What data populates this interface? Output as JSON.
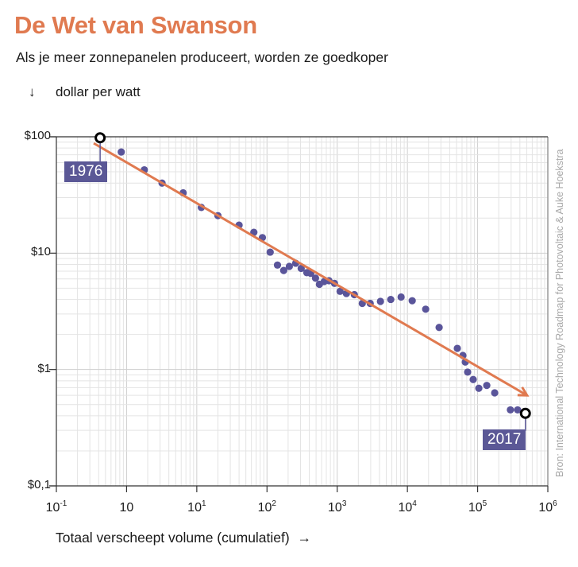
{
  "title": "De Wet van Swanson",
  "subtitle": "Als je meer zonnepanelen produceert, worden ze goedkoper",
  "source": "Bron: International Technology Roadmap for Photovoltaic & Auke Hoekstra",
  "colors": {
    "accent": "#e07a50",
    "points": "#5a559a",
    "label_box": "#5b5896"
  },
  "chart_data": {
    "type": "scatter",
    "title": "De Wet van Swanson",
    "xlabel": "Totaal verscheept volume (cumulatief)",
    "xlabel_arrow": "→",
    "ylabel": "dollar per watt",
    "ylabel_arrow": "↓",
    "xscale": "log",
    "yscale": "log",
    "xlim": [
      0.1,
      1000000
    ],
    "ylim": [
      0.1,
      100
    ],
    "grid": true,
    "y_ticks": [
      {
        "value": 100,
        "label": "$100"
      },
      {
        "value": 10,
        "label": "$10"
      },
      {
        "value": 1,
        "label": "$1"
      },
      {
        "value": 0.1,
        "label": "$0,1"
      }
    ],
    "x_ticks": [
      {
        "value": 0.1,
        "base": "10",
        "exp": "-1"
      },
      {
        "value": 1,
        "base": "10",
        "exp": ""
      },
      {
        "value": 10,
        "base": "10",
        "exp": "1"
      },
      {
        "value": 100,
        "base": "10",
        "exp": "2"
      },
      {
        "value": 1000,
        "base": "10",
        "exp": "3"
      },
      {
        "value": 10000,
        "base": "10",
        "exp": "4"
      },
      {
        "value": 100000,
        "base": "10",
        "exp": "5"
      },
      {
        "value": 1000000,
        "base": "10",
        "exp": "6"
      }
    ],
    "points": [
      [
        0.84,
        74
      ],
      [
        1.79,
        52
      ],
      [
        3.2,
        40
      ],
      [
        6.4,
        33
      ],
      [
        11.6,
        24.7
      ],
      [
        20,
        21
      ],
      [
        40,
        17.4
      ],
      [
        65,
        15.1
      ],
      [
        86,
        13.6
      ],
      [
        111,
        10.2
      ],
      [
        141,
        7.9
      ],
      [
        173,
        7.1
      ],
      [
        208,
        7.7
      ],
      [
        256,
        8.2
      ],
      [
        307,
        7.4
      ],
      [
        369,
        6.8
      ],
      [
        420,
        6.7
      ],
      [
        491,
        6.1
      ],
      [
        558,
        5.4
      ],
      [
        653,
        5.7
      ],
      [
        764,
        5.8
      ],
      [
        916,
        5.5
      ],
      [
        1099,
        4.7
      ],
      [
        1352,
        4.5
      ],
      [
        1754,
        4.4
      ],
      [
        2275,
        3.7
      ],
      [
        2951,
        3.7
      ],
      [
        4130,
        3.85
      ],
      [
        5790,
        4.0
      ],
      [
        8130,
        4.2
      ],
      [
        11700,
        3.9
      ],
      [
        18200,
        3.3
      ],
      [
        28300,
        2.3
      ],
      [
        51400,
        1.52
      ],
      [
        61700,
        1.32
      ],
      [
        66700,
        1.16
      ],
      [
        72100,
        0.95
      ],
      [
        86500,
        0.82
      ],
      [
        104000,
        0.69
      ],
      [
        135000,
        0.73
      ],
      [
        175000,
        0.63
      ],
      [
        293000,
        0.45
      ],
      [
        371000,
        0.45
      ]
    ],
    "trend": {
      "start": [
        0.34,
        88
      ],
      "end": [
        506000,
        0.6
      ]
    },
    "annotations": [
      {
        "label": "1976",
        "x": 0.42,
        "y": 98
      },
      {
        "label": "2017",
        "x": 479000,
        "y": 0.42
      }
    ]
  }
}
